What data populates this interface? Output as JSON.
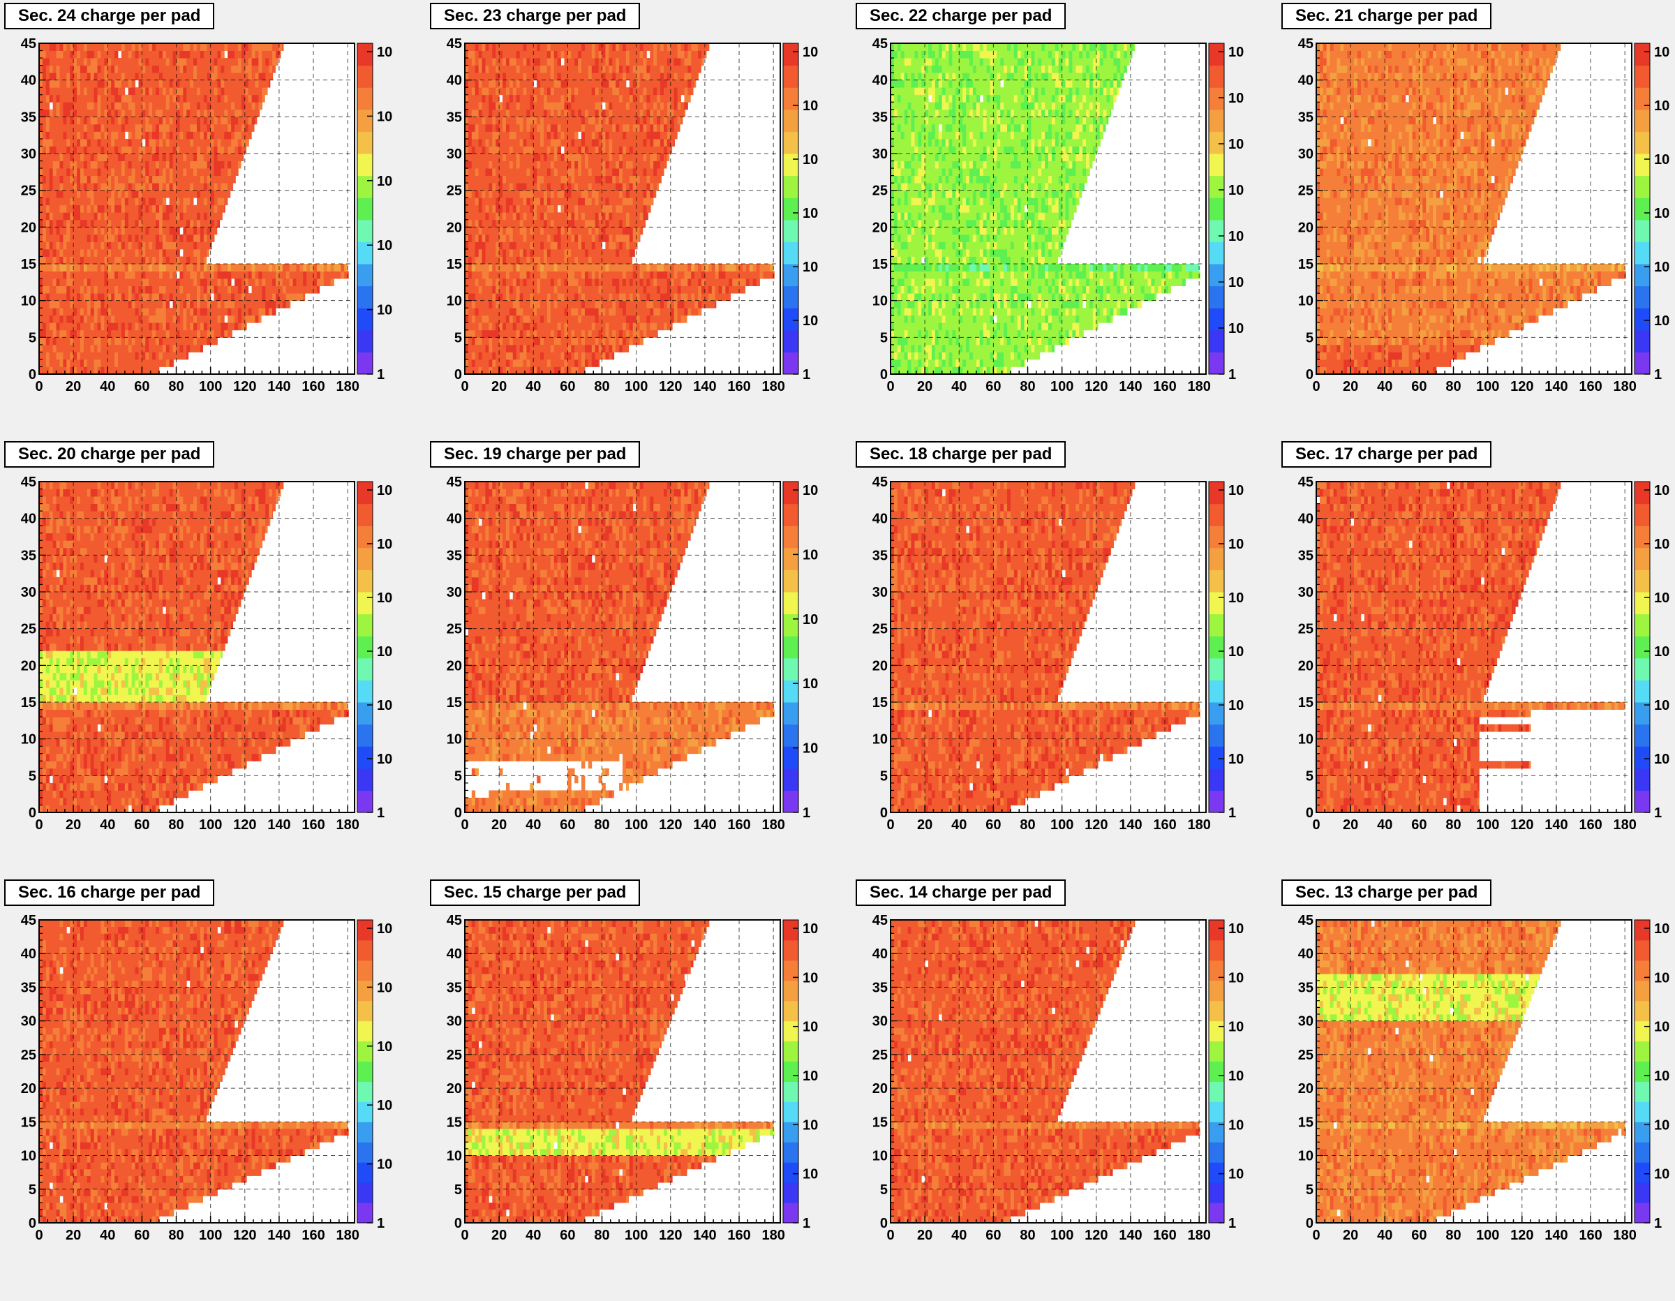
{
  "colors": {
    "palette": [
      "#7a38f0",
      "#3a38f5",
      "#1f4cf8",
      "#2b74f0",
      "#3a9ef0",
      "#55dbf5",
      "#6ef8b0",
      "#5ef050",
      "#9ef540",
      "#f0f550",
      "#f5c048",
      "#f5a040",
      "#f57e38",
      "#f25a30",
      "#e83828"
    ]
  },
  "chart_data": [
    {
      "type": "heatmap",
      "title": "Sec. 24 charge per pad",
      "xlim": [
        0,
        184
      ],
      "ylim": [
        0,
        45
      ],
      "x_ticks": [
        "0",
        "20",
        "40",
        "60",
        "80",
        "100",
        "120",
        "140",
        "160",
        "180"
      ],
      "y_ticks": [
        "0",
        "5",
        "10",
        "15",
        "20",
        "25",
        "30",
        "35",
        "40",
        "45"
      ],
      "z_ticks": [
        "1",
        "10",
        "10",
        "10",
        "10",
        "10"
      ],
      "z_scale": "log",
      "grid": true,
      "region_levels": {
        "upper": 13,
        "row14": 12,
        "lower": 13
      }
    },
    {
      "type": "heatmap",
      "title": "Sec. 23 charge per pad",
      "xlim": [
        0,
        184
      ],
      "ylim": [
        0,
        45
      ],
      "x_ticks": [
        "0",
        "20",
        "40",
        "60",
        "80",
        "100",
        "120",
        "140",
        "160",
        "180"
      ],
      "y_ticks": [
        "0",
        "5",
        "10",
        "15",
        "20",
        "25",
        "30",
        "35",
        "40",
        "45"
      ],
      "z_ticks": [
        "1",
        "10",
        "10",
        "10",
        "10",
        "10",
        "10"
      ],
      "z_scale": "log",
      "grid": true,
      "region_levels": {
        "upper": 13,
        "row14": 12,
        "lower": 13
      }
    },
    {
      "type": "heatmap",
      "title": "Sec. 22 charge per pad",
      "xlim": [
        0,
        184
      ],
      "ylim": [
        0,
        45
      ],
      "x_ticks": [
        "0",
        "20",
        "40",
        "60",
        "80",
        "100",
        "120",
        "140",
        "160",
        "180"
      ],
      "y_ticks": [
        "0",
        "5",
        "10",
        "15",
        "20",
        "25",
        "30",
        "35",
        "40",
        "45"
      ],
      "z_ticks": [
        "1",
        "10",
        "10",
        "10",
        "10",
        "10",
        "10",
        "10"
      ],
      "z_scale": "log",
      "grid": true,
      "region_levels": {
        "upper": 8,
        "row14": 7,
        "lower": 8
      }
    },
    {
      "type": "heatmap",
      "title": "Sec. 21 charge per pad",
      "xlim": [
        0,
        184
      ],
      "ylim": [
        0,
        45
      ],
      "x_ticks": [
        "0",
        "20",
        "40",
        "60",
        "80",
        "100",
        "120",
        "140",
        "160",
        "180"
      ],
      "y_ticks": [
        "0",
        "5",
        "10",
        "15",
        "20",
        "25",
        "30",
        "35",
        "40",
        "45"
      ],
      "z_ticks": [
        "1",
        "10",
        "10",
        "10",
        "10",
        "10",
        "10"
      ],
      "z_scale": "log",
      "grid": true,
      "region_levels": {
        "upper": 12,
        "row14": 11,
        "lower": 12,
        "lower_bottom": 13
      }
    },
    {
      "type": "heatmap",
      "title": "Sec. 20 charge per pad",
      "xlim": [
        0,
        184
      ],
      "ylim": [
        0,
        45
      ],
      "x_ticks": [
        "0",
        "20",
        "40",
        "60",
        "80",
        "100",
        "120",
        "140",
        "160",
        "180"
      ],
      "y_ticks": [
        "0",
        "5",
        "10",
        "15",
        "20",
        "25",
        "30",
        "35",
        "40",
        "45"
      ],
      "z_ticks": [
        "1",
        "10",
        "10",
        "10",
        "10",
        "10",
        "10"
      ],
      "z_scale": "log",
      "grid": true,
      "region_levels": {
        "upper": 13,
        "row14": 12,
        "lower": 13
      },
      "bands": [
        {
          "rows": [
            15,
            21
          ],
          "level": 9
        }
      ]
    },
    {
      "type": "heatmap",
      "title": "Sec. 19 charge per pad",
      "xlim": [
        0,
        184
      ],
      "ylim": [
        0,
        45
      ],
      "x_ticks": [
        "0",
        "20",
        "40",
        "60",
        "80",
        "100",
        "120",
        "140",
        "160",
        "180"
      ],
      "y_ticks": [
        "0",
        "5",
        "10",
        "15",
        "20",
        "25",
        "30",
        "35",
        "40",
        "45"
      ],
      "z_ticks": [
        "1",
        "10",
        "10",
        "10",
        "10",
        "10"
      ],
      "z_scale": "log",
      "grid": true,
      "region_levels": {
        "upper": 13,
        "row14": 12,
        "lower": 12
      },
      "gaps": [
        {
          "rows": [
            5,
            6
          ],
          "x": [
            0,
            90
          ]
        },
        {
          "rows": [
            3,
            4
          ],
          "x": [
            0,
            92
          ]
        },
        {
          "rows": [
            2,
            2
          ],
          "x": [
            0,
            12
          ]
        }
      ]
    },
    {
      "type": "heatmap",
      "title": "Sec. 18 charge per pad",
      "xlim": [
        0,
        184
      ],
      "ylim": [
        0,
        45
      ],
      "x_ticks": [
        "0",
        "20",
        "40",
        "60",
        "80",
        "100",
        "120",
        "140",
        "160",
        "180"
      ],
      "y_ticks": [
        "0",
        "5",
        "10",
        "15",
        "20",
        "25",
        "30",
        "35",
        "40",
        "45"
      ],
      "z_ticks": [
        "1",
        "10",
        "10",
        "10",
        "10",
        "10",
        "10"
      ],
      "z_scale": "log",
      "grid": true,
      "region_levels": {
        "upper": 13,
        "row14": 12,
        "lower": 13
      }
    },
    {
      "type": "heatmap",
      "title": "Sec. 17 charge per pad",
      "xlim": [
        0,
        184
      ],
      "ylim": [
        0,
        45
      ],
      "x_ticks": [
        "0",
        "20",
        "40",
        "60",
        "80",
        "100",
        "120",
        "140",
        "160",
        "180"
      ],
      "y_ticks": [
        "0",
        "5",
        "10",
        "15",
        "20",
        "25",
        "30",
        "35",
        "40",
        "45"
      ],
      "z_ticks": [
        "1",
        "10",
        "10",
        "10",
        "10",
        "10",
        "10"
      ],
      "z_scale": "log",
      "grid": true,
      "region_levels": {
        "upper": 13,
        "row14": 12,
        "lower": 13
      },
      "lower_max_x": [
        95,
        95,
        95,
        95,
        95,
        95,
        125,
        95,
        95,
        95,
        95,
        125,
        95,
        125
      ]
    },
    {
      "type": "heatmap",
      "title": "Sec. 16 charge per pad",
      "xlim": [
        0,
        184
      ],
      "ylim": [
        0,
        45
      ],
      "x_ticks": [
        "0",
        "20",
        "40",
        "60",
        "80",
        "100",
        "120",
        "140",
        "160",
        "180"
      ],
      "y_ticks": [
        "0",
        "5",
        "10",
        "15",
        "20",
        "25",
        "30",
        "35",
        "40",
        "45"
      ],
      "z_ticks": [
        "1",
        "10",
        "10",
        "10",
        "10",
        "10"
      ],
      "z_scale": "log",
      "grid": true,
      "region_levels": {
        "upper": 13,
        "row14": 12,
        "lower": 13
      }
    },
    {
      "type": "heatmap",
      "title": "Sec. 15 charge per pad",
      "xlim": [
        0,
        184
      ],
      "ylim": [
        0,
        45
      ],
      "x_ticks": [
        "0",
        "20",
        "40",
        "60",
        "80",
        "100",
        "120",
        "140",
        "160",
        "180"
      ],
      "y_ticks": [
        "0",
        "5",
        "10",
        "15",
        "20",
        "25",
        "30",
        "35",
        "40",
        "45"
      ],
      "z_ticks": [
        "1",
        "10",
        "10",
        "10",
        "10",
        "10",
        "10"
      ],
      "z_scale": "log",
      "grid": true,
      "region_levels": {
        "upper": 13,
        "row14": 12,
        "lower": 13
      },
      "bands": [
        {
          "rows": [
            10,
            13
          ],
          "level": 9
        }
      ]
    },
    {
      "type": "heatmap",
      "title": "Sec. 14 charge per pad",
      "xlim": [
        0,
        184
      ],
      "ylim": [
        0,
        45
      ],
      "x_ticks": [
        "0",
        "20",
        "40",
        "60",
        "80",
        "100",
        "120",
        "140",
        "160",
        "180"
      ],
      "y_ticks": [
        "0",
        "5",
        "10",
        "15",
        "20",
        "25",
        "30",
        "35",
        "40",
        "45"
      ],
      "z_ticks": [
        "1",
        "10",
        "10",
        "10",
        "10",
        "10",
        "10"
      ],
      "z_scale": "log",
      "grid": true,
      "region_levels": {
        "upper": 13,
        "row14": 12,
        "lower": 13
      }
    },
    {
      "type": "heatmap",
      "title": "Sec. 13 charge per pad",
      "xlim": [
        0,
        184
      ],
      "ylim": [
        0,
        45
      ],
      "x_ticks": [
        "0",
        "20",
        "40",
        "60",
        "80",
        "100",
        "120",
        "140",
        "160",
        "180"
      ],
      "y_ticks": [
        "0",
        "5",
        "10",
        "15",
        "20",
        "25",
        "30",
        "35",
        "40",
        "45"
      ],
      "z_ticks": [
        "1",
        "10",
        "10",
        "10",
        "10",
        "10",
        "10"
      ],
      "z_scale": "log",
      "grid": true,
      "region_levels": {
        "upper": 12,
        "row14": 11,
        "lower": 12
      },
      "bands": [
        {
          "rows": [
            30,
            36
          ],
          "level": 9
        }
      ]
    }
  ]
}
